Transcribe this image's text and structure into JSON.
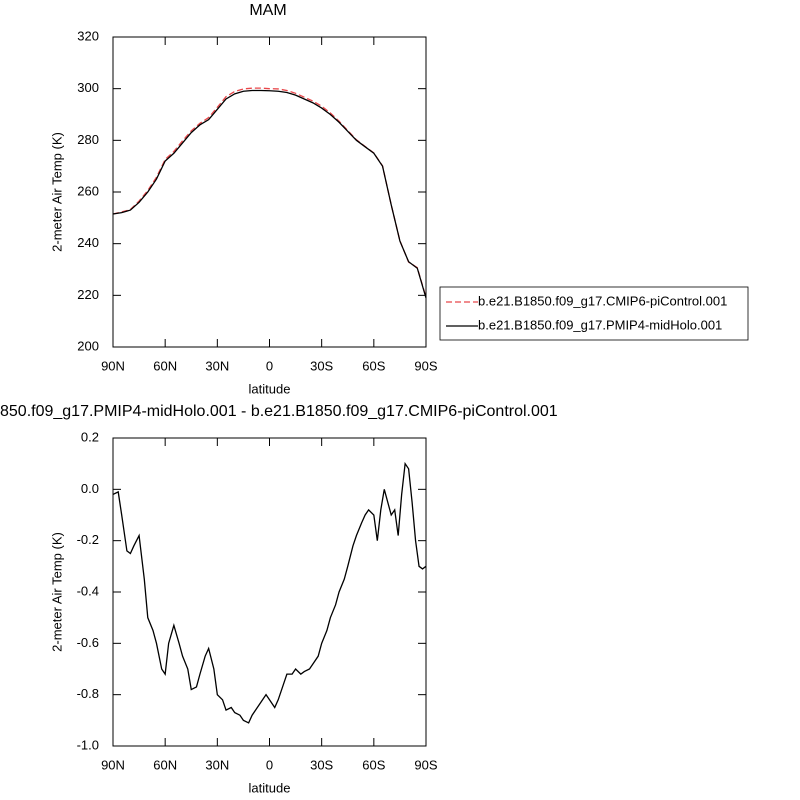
{
  "chart_data": [
    {
      "type": "line",
      "title": "MAM",
      "xlabel": "latitude",
      "ylabel": "2-meter Air Temp (K)",
      "x": [
        90,
        85,
        80,
        75,
        70,
        65,
        60,
        55,
        50,
        45,
        40,
        35,
        30,
        25,
        20,
        15,
        10,
        5,
        0,
        -5,
        -10,
        -15,
        -20,
        -25,
        -30,
        -35,
        -40,
        -45,
        -50,
        -55,
        -60,
        -65,
        -70,
        -75,
        -80,
        -85,
        -90
      ],
      "series": [
        {
          "name": "b.e21.B1850.f09_g17.CMIP6-piControl.001",
          "color": "#e8474a",
          "dash": "dashed",
          "values": [
            251.5,
            252.3,
            253.2,
            256.5,
            260.6,
            265.7,
            272.6,
            275.7,
            279.8,
            283.7,
            286.6,
            288.8,
            292.8,
            296.9,
            298.9,
            299.9,
            300.2,
            300.2,
            300.0,
            299.9,
            299.3,
            298.2,
            296.7,
            295.2,
            293.2,
            290.6,
            287.4,
            283.8,
            280.2,
            277.6,
            275.1,
            270.1,
            255.0,
            241.1,
            232.9,
            230.7,
            219.3
          ]
        },
        {
          "name": "b.e21.B1850.f09_g17.PMIP4-midHolo.001",
          "color": "#000000",
          "dash": "solid",
          "values": [
            251.5,
            252,
            253,
            256,
            260,
            265,
            272,
            275,
            279,
            283,
            286,
            288,
            292,
            296,
            298,
            299,
            299.3,
            299.3,
            299.2,
            299,
            298.5,
            297.5,
            296,
            294.5,
            292.5,
            290,
            287,
            283.5,
            280,
            277.5,
            275,
            270,
            255,
            241,
            233,
            230.5,
            219
          ]
        }
      ],
      "xlim": [
        90,
        -90
      ],
      "xticks": [
        {
          "value": 90,
          "label": "90N"
        },
        {
          "value": 60,
          "label": "60N"
        },
        {
          "value": 30,
          "label": "30N"
        },
        0,
        {
          "value": -30,
          "label": "30S"
        },
        {
          "value": -60,
          "label": "60S"
        },
        {
          "value": -90,
          "label": "90S"
        }
      ],
      "ylim": [
        200,
        320
      ],
      "yticks": [
        200,
        220,
        240,
        260,
        280,
        300,
        320
      ],
      "legend": "right"
    },
    {
      "type": "line",
      "title": "850.f09_g17.PMIP4-midHolo.001 - b.e21.B1850.f09_g17.CMIP6-piControl.001",
      "xlabel": "latitude",
      "ylabel": "2-meter Air Temp (K)",
      "x": [
        90,
        87,
        85,
        82,
        80,
        78,
        75,
        72,
        70,
        67,
        65,
        62,
        60,
        58,
        55,
        52,
        50,
        47,
        45,
        42,
        40,
        37,
        35,
        32,
        30,
        27,
        25,
        22,
        20,
        17,
        15,
        12,
        10,
        7,
        5,
        2,
        0,
        -3,
        -5,
        -8,
        -10,
        -13,
        -15,
        -18,
        -20,
        -23,
        -25,
        -28,
        -30,
        -33,
        -35,
        -38,
        -40,
        -43,
        -45,
        -48,
        -50,
        -53,
        -55,
        -57,
        -60,
        -62,
        -64,
        -66,
        -68,
        -70,
        -72,
        -74,
        -76,
        -78,
        -80,
        -82,
        -84,
        -86,
        -88,
        -90
      ],
      "series": [
        {
          "color": "#000000",
          "dash": "solid",
          "values": [
            -0.02,
            -0.01,
            -0.1,
            -0.24,
            -0.25,
            -0.22,
            -0.18,
            -0.35,
            -0.5,
            -0.55,
            -0.6,
            -0.7,
            -0.72,
            -0.6,
            -0.53,
            -0.6,
            -0.65,
            -0.7,
            -0.78,
            -0.77,
            -0.72,
            -0.65,
            -0.62,
            -0.7,
            -0.8,
            -0.82,
            -0.86,
            -0.85,
            -0.87,
            -0.88,
            -0.9,
            -0.91,
            -0.88,
            -0.85,
            -0.83,
            -0.8,
            -0.82,
            -0.85,
            -0.82,
            -0.76,
            -0.72,
            -0.72,
            -0.7,
            -0.72,
            -0.71,
            -0.7,
            -0.68,
            -0.65,
            -0.6,
            -0.55,
            -0.5,
            -0.45,
            -0.4,
            -0.35,
            -0.3,
            -0.22,
            -0.18,
            -0.13,
            -0.1,
            -0.08,
            -0.1,
            -0.2,
            -0.08,
            0.0,
            -0.05,
            -0.1,
            -0.08,
            -0.18,
            -0.02,
            0.1,
            0.08,
            -0.05,
            -0.2,
            -0.3,
            -0.31,
            -0.3
          ]
        }
      ],
      "xlim": [
        90,
        -90
      ],
      "xticks": [
        {
          "value": 90,
          "label": "90N"
        },
        {
          "value": 60,
          "label": "60N"
        },
        {
          "value": 30,
          "label": "30N"
        },
        0,
        {
          "value": -30,
          "label": "30S"
        },
        {
          "value": -60,
          "label": "60S"
        },
        {
          "value": -90,
          "label": "90S"
        }
      ],
      "ylim": [
        -1.0,
        0.2
      ],
      "yticks": [
        {
          "value": -1.0,
          "label": "-1.0"
        },
        -0.8,
        -0.6,
        -0.4,
        -0.2,
        {
          "value": 0.0,
          "label": "0.0"
        },
        0.2
      ]
    }
  ]
}
